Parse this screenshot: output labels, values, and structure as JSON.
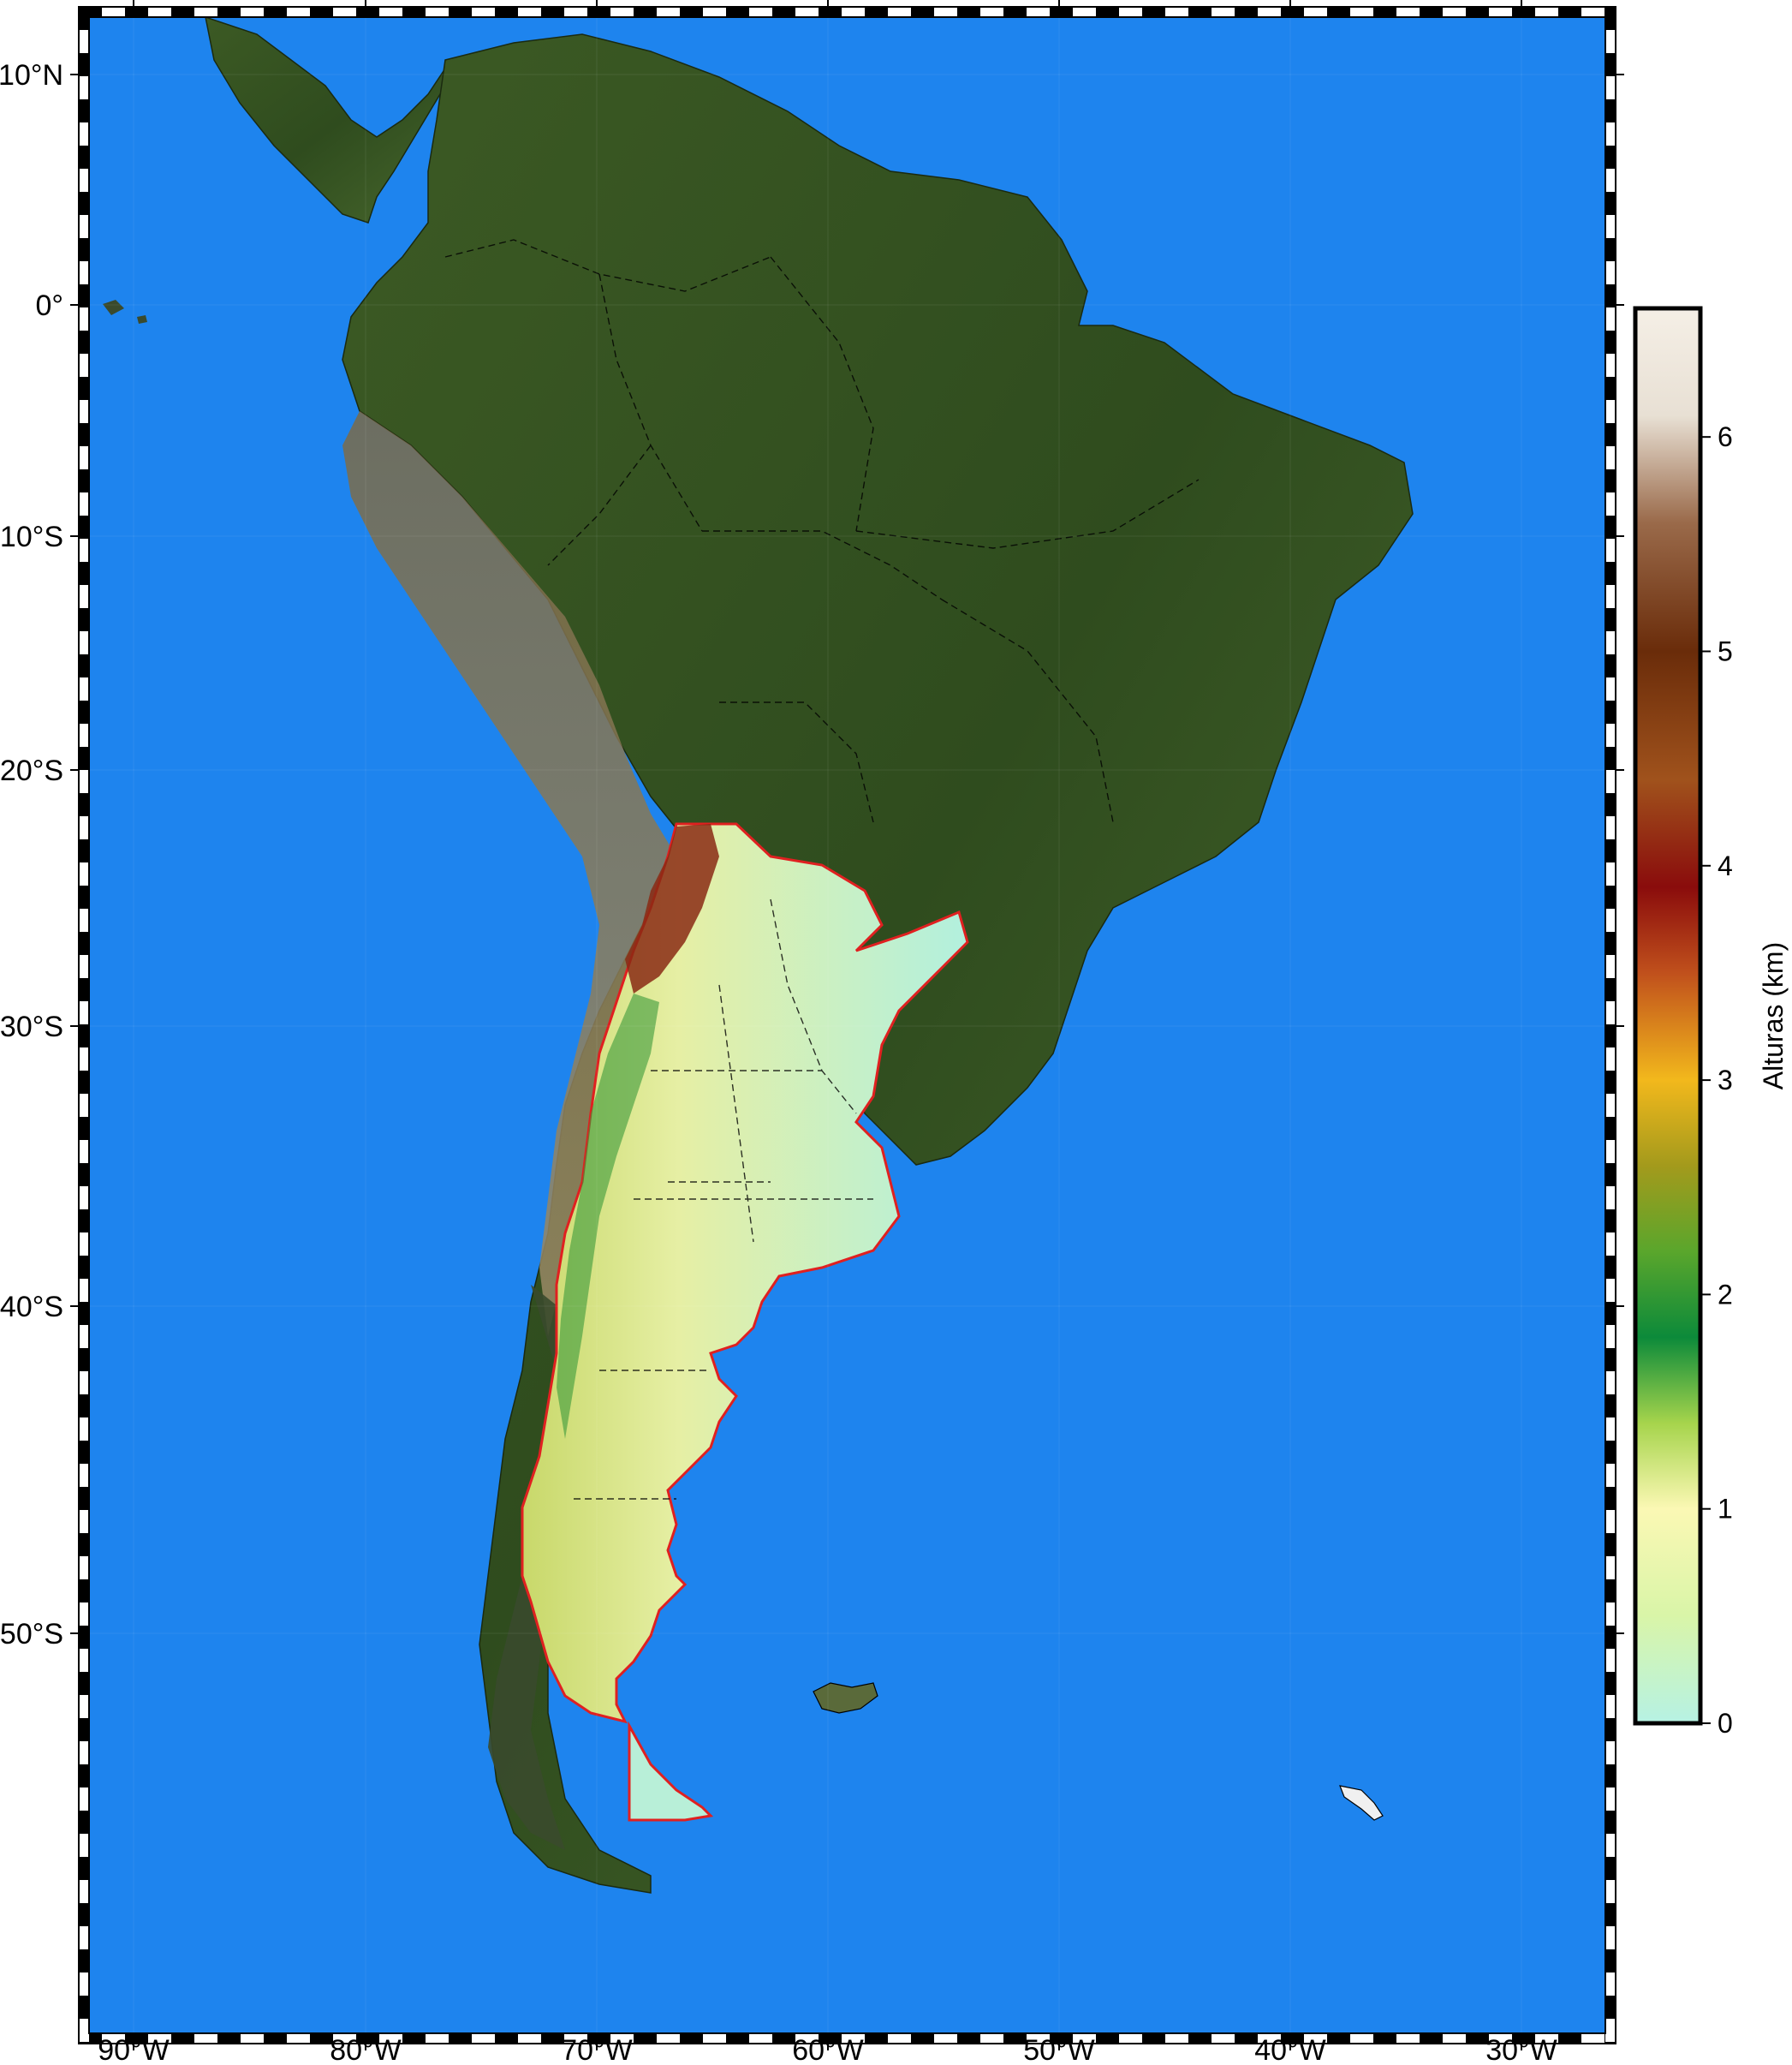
{
  "map": {
    "ocean_color": "#1e84ee",
    "frame_colors": [
      "#000000",
      "#ffffff"
    ],
    "longitude_labels": [
      "90°W",
      "80°W",
      "70°W",
      "60°W",
      "50°W",
      "40°W",
      "30°W"
    ],
    "latitude_labels": [
      "10°N",
      "0°",
      "10°S",
      "20°S",
      "30°S",
      "40°S",
      "50°S"
    ],
    "highlight_region_border_color": "#e02020",
    "country_border_color": "#000000"
  },
  "colorbar": {
    "title": "Alturas (km)",
    "tick_labels": [
      "0",
      "1",
      "2",
      "3",
      "4",
      "5",
      "6"
    ],
    "gradient_stops": [
      {
        "value": 0.0,
        "color": "#b6f2e4"
      },
      {
        "value": 0.5,
        "color": "#d9f5a8"
      },
      {
        "value": 1.0,
        "color": "#fbf8b4"
      },
      {
        "value": 1.4,
        "color": "#a6d44c"
      },
      {
        "value": 1.8,
        "color": "#0c8a3a"
      },
      {
        "value": 2.2,
        "color": "#5aa62c"
      },
      {
        "value": 2.6,
        "color": "#a39a1c"
      },
      {
        "value": 3.0,
        "color": "#f2b81c"
      },
      {
        "value": 3.5,
        "color": "#c0501c"
      },
      {
        "value": 3.9,
        "color": "#8a0c0c"
      },
      {
        "value": 4.4,
        "color": "#a0521c"
      },
      {
        "value": 5.0,
        "color": "#6a2c0a"
      },
      {
        "value": 5.6,
        "color": "#9a6a4a"
      },
      {
        "value": 6.1,
        "color": "#e8e0d4"
      },
      {
        "value": 6.6,
        "color": "#f5efe6"
      }
    ],
    "range": [
      0,
      6.6
    ]
  }
}
